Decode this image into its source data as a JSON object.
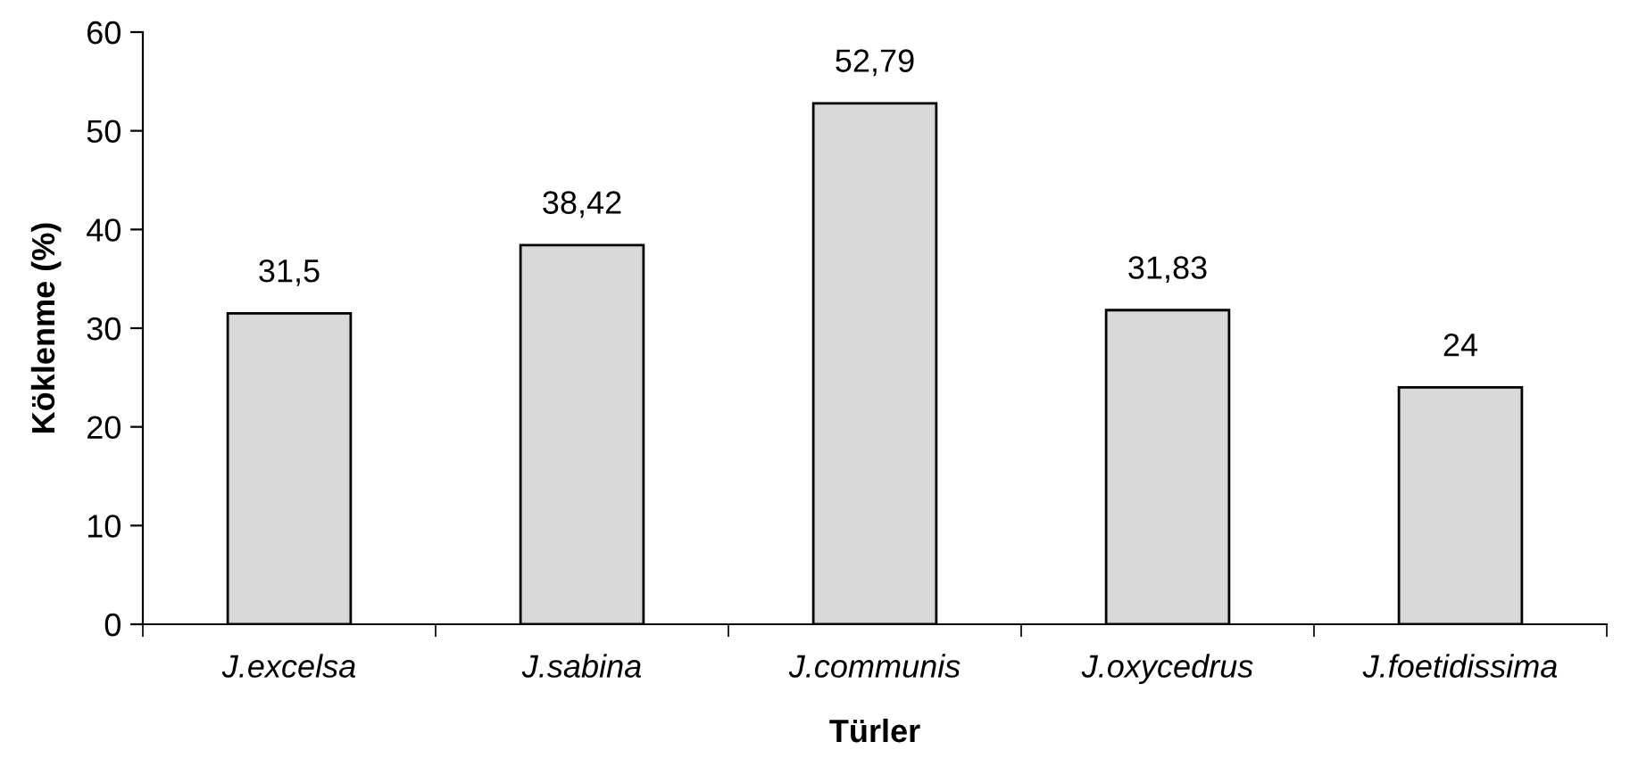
{
  "chart_data": {
    "type": "bar",
    "xlabel": "Türler",
    "ylabel": "Köklenme (%)",
    "categories": [
      "J.excelsa",
      "J.sabina",
      "J.communis",
      "J.oxycedrus",
      "J.foetidissima"
    ],
    "values": [
      31.5,
      38.42,
      52.79,
      31.83,
      24
    ],
    "value_labels": [
      "31,5",
      "38,42",
      "52,79",
      "31,83",
      "24"
    ],
    "color": "#d9d9d9",
    "ylim": [
      0,
      60
    ],
    "yticks": [
      0,
      10,
      20,
      30,
      40,
      50,
      60
    ],
    "grid": false,
    "legend": false
  }
}
